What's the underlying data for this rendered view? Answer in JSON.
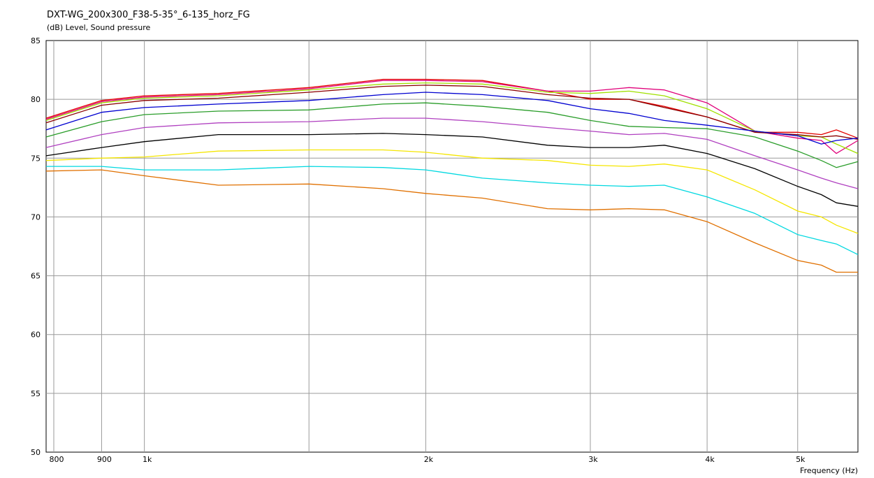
{
  "chart_data": {
    "type": "line",
    "title": "DXT-WG_200x300_F38-5-35°_6-135_horz_FG",
    "ylabel": "(dB)  Level, Sound pressure",
    "xlabel": "Frequency  (Hz)",
    "xscale": "log",
    "xlim": [
      785,
      5800
    ],
    "ylim": [
      50,
      85
    ],
    "yticks": [
      50,
      55,
      60,
      65,
      70,
      75,
      80,
      85
    ],
    "xticks": [
      {
        "value": 800,
        "label": "800"
      },
      {
        "value": 900,
        "label": "900"
      },
      {
        "value": 1000,
        "label": "1k"
      },
      {
        "value": 2000,
        "label": "2k"
      },
      {
        "value": 3000,
        "label": "3k"
      },
      {
        "value": 4000,
        "label": "4k"
      },
      {
        "value": 5000,
        "label": "5k"
      }
    ],
    "minor_xgrid": [
      1500
    ],
    "grid": true,
    "legend": "none",
    "series": [
      {
        "color": "#e30000",
        "x": [
          785,
          900,
          1000,
          1200,
          1500,
          1800,
          2000,
          2300,
          2700,
          3000,
          3300,
          3600,
          4000,
          4500,
          5000,
          5300,
          5500,
          5800
        ],
        "y": [
          78.4,
          79.9,
          80.3,
          80.5,
          81.0,
          81.7,
          81.7,
          81.6,
          80.7,
          80.0,
          80.0,
          79.4,
          78.5,
          77.2,
          77.2,
          77.0,
          77.4,
          76.7
        ]
      },
      {
        "color": "#e0007a",
        "x": [
          785,
          900,
          1000,
          1200,
          1500,
          1800,
          2000,
          2300,
          2700,
          3000,
          3300,
          3600,
          4000,
          4500,
          5000,
          5300,
          5500,
          5800
        ],
        "y": [
          78.3,
          79.8,
          80.2,
          80.4,
          80.9,
          81.6,
          81.6,
          81.5,
          80.7,
          80.7,
          81.0,
          80.8,
          79.7,
          77.3,
          76.7,
          76.5,
          75.4,
          76.5
        ]
      },
      {
        "color": "#a0e000",
        "x": [
          785,
          900,
          1000,
          1200,
          1500,
          1800,
          2000,
          2300,
          2700,
          3000,
          3300,
          3600,
          4000,
          4500,
          5000,
          5300,
          5500,
          5800
        ],
        "y": [
          78.2,
          79.7,
          80.1,
          80.3,
          80.8,
          81.3,
          81.4,
          81.3,
          80.6,
          80.5,
          80.7,
          80.3,
          79.2,
          77.3,
          76.9,
          76.8,
          76.2,
          75.4
        ]
      },
      {
        "color": "#8b0000",
        "x": [
          785,
          900,
          1000,
          1200,
          1500,
          1800,
          2000,
          2300,
          2700,
          3000,
          3300,
          3600,
          4000,
          4500,
          5000,
          5300,
          5500,
          5800
        ],
        "y": [
          78.0,
          79.5,
          79.9,
          80.1,
          80.6,
          81.1,
          81.2,
          81.1,
          80.4,
          80.1,
          80.0,
          79.3,
          78.5,
          77.2,
          77.0,
          76.8,
          76.9,
          76.6
        ]
      },
      {
        "color": "#0000d0",
        "x": [
          785,
          900,
          1000,
          1200,
          1500,
          1800,
          2000,
          2300,
          2700,
          3000,
          3300,
          3600,
          4000,
          4500,
          5000,
          5300,
          5500,
          5800
        ],
        "y": [
          77.4,
          78.9,
          79.3,
          79.6,
          79.9,
          80.4,
          80.6,
          80.4,
          79.9,
          79.2,
          78.8,
          78.2,
          77.8,
          77.3,
          76.9,
          76.2,
          76.5,
          76.7
        ]
      },
      {
        "color": "#2a9d2a",
        "x": [
          785,
          900,
          1000,
          1200,
          1500,
          1800,
          2000,
          2300,
          2700,
          3000,
          3300,
          3600,
          4000,
          4500,
          5000,
          5300,
          5500,
          5800
        ],
        "y": [
          76.8,
          78.1,
          78.7,
          79.0,
          79.1,
          79.6,
          79.7,
          79.4,
          78.9,
          78.2,
          77.7,
          77.6,
          77.5,
          76.8,
          75.6,
          74.8,
          74.2,
          74.7
        ]
      },
      {
        "color": "#b040c0",
        "x": [
          785,
          900,
          1000,
          1200,
          1500,
          1800,
          2000,
          2300,
          2700,
          3000,
          3300,
          3600,
          4000,
          4500,
          5000,
          5300,
          5500,
          5800
        ],
        "y": [
          75.9,
          77.0,
          77.6,
          78.0,
          78.1,
          78.4,
          78.4,
          78.1,
          77.6,
          77.3,
          77.0,
          77.1,
          76.6,
          75.2,
          74.0,
          73.3,
          72.9,
          72.4
        ]
      },
      {
        "color": "#000000",
        "x": [
          785,
          900,
          1000,
          1200,
          1500,
          1800,
          2000,
          2300,
          2700,
          3000,
          3300,
          3600,
          4000,
          4500,
          5000,
          5300,
          5500,
          5800
        ],
        "y": [
          75.2,
          75.9,
          76.4,
          77.0,
          77.0,
          77.1,
          77.0,
          76.8,
          76.1,
          75.9,
          75.9,
          76.1,
          75.4,
          74.1,
          72.6,
          71.9,
          71.2,
          70.9
        ]
      },
      {
        "color": "#f5e600",
        "x": [
          785,
          900,
          1000,
          1200,
          1500,
          1800,
          2000,
          2300,
          2700,
          3000,
          3300,
          3600,
          4000,
          4500,
          5000,
          5300,
          5500,
          5800
        ],
        "y": [
          74.8,
          75.0,
          75.1,
          75.6,
          75.7,
          75.7,
          75.5,
          75.0,
          74.8,
          74.4,
          74.3,
          74.5,
          74.0,
          72.3,
          70.5,
          70.0,
          69.3,
          68.6
        ]
      },
      {
        "color": "#00d8e0",
        "x": [
          785,
          900,
          1000,
          1200,
          1500,
          1800,
          2000,
          2300,
          2700,
          3000,
          3300,
          3600,
          4000,
          4500,
          5000,
          5300,
          5500,
          5800
        ],
        "y": [
          74.3,
          74.3,
          74.0,
          74.0,
          74.3,
          74.2,
          74.0,
          73.3,
          72.9,
          72.7,
          72.6,
          72.7,
          71.7,
          70.3,
          68.5,
          68.0,
          67.7,
          66.8
        ]
      },
      {
        "color": "#e07000",
        "x": [
          785,
          900,
          1000,
          1200,
          1500,
          1800,
          2000,
          2300,
          2700,
          3000,
          3300,
          3600,
          4000,
          4500,
          5000,
          5300,
          5500,
          5800
        ],
        "y": [
          73.9,
          74.0,
          73.5,
          72.7,
          72.8,
          72.4,
          72.0,
          71.6,
          70.7,
          70.6,
          70.7,
          70.6,
          69.6,
          67.8,
          66.3,
          65.9,
          65.3,
          65.3
        ]
      }
    ]
  }
}
